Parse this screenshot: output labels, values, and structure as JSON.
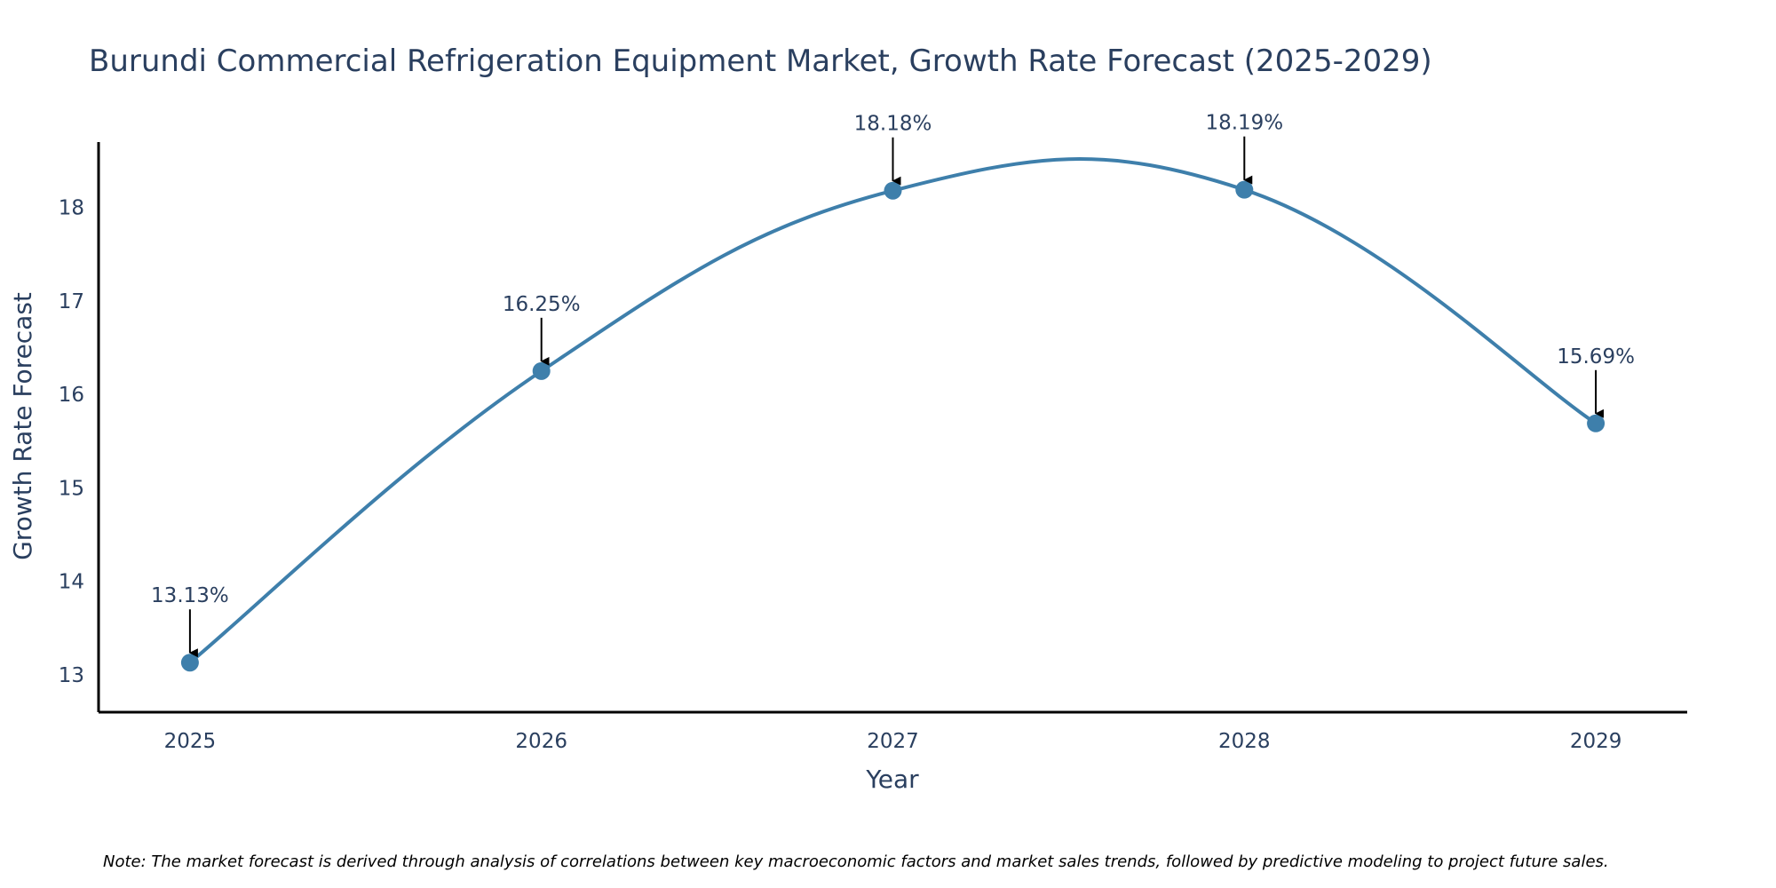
{
  "chart_data": {
    "type": "line",
    "title": "Burundi Commercial Refrigeration Equipment Market, Growth Rate Forecast (2025-2029)",
    "xlabel": "Year",
    "ylabel": "Growth Rate Forecast",
    "categories": [
      "2025",
      "2026",
      "2027",
      "2028",
      "2029"
    ],
    "series": [
      {
        "name": "Growth Rate Forecast",
        "values": [
          13.13,
          16.25,
          18.18,
          18.19,
          15.69
        ],
        "labels": [
          "13.13%",
          "16.25%",
          "18.18%",
          "18.19%",
          "15.69%"
        ],
        "color": "#3e7fab",
        "line_shape": "spline"
      }
    ],
    "yticks": [
      13,
      14,
      15,
      16,
      17,
      18
    ],
    "ytick_labels": [
      "13",
      "14",
      "15",
      "16",
      "17",
      "18"
    ],
    "ylim": [
      12.6,
      18.7
    ],
    "xlim": [
      2024.74,
      2029.26
    ],
    "grid": false,
    "legend": "none",
    "annotation_arrow_color": "#000000",
    "axis_color": "#000000",
    "note": "Note: The market forecast is derived through analysis of correlations between key macroeconomic factors and market sales trends, followed by predictive modeling to project future sales."
  }
}
